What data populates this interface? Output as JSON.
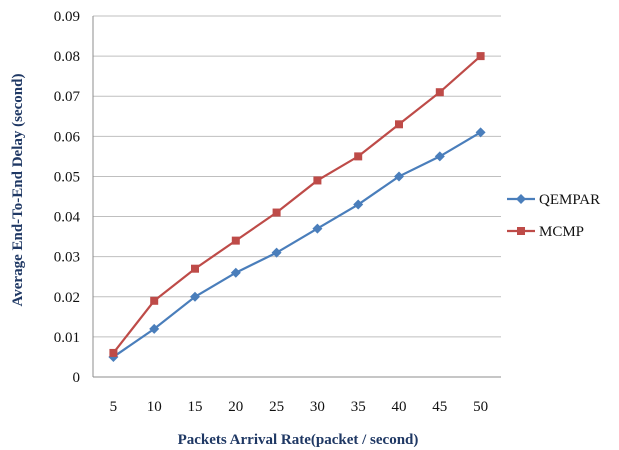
{
  "chart_data": {
    "type": "line",
    "categories": [
      "5",
      "10",
      "15",
      "20",
      "25",
      "30",
      "35",
      "40",
      "45",
      "50"
    ],
    "series": [
      {
        "name": "QEMPAR",
        "values": [
          0.005,
          0.012,
          0.02,
          0.026,
          0.031,
          0.037,
          0.043,
          0.05,
          0.055,
          0.061
        ],
        "color": "#4a7ebb",
        "marker": "diamond"
      },
      {
        "name": "MCMP",
        "values": [
          0.006,
          0.019,
          0.027,
          0.034,
          0.041,
          0.049,
          0.055,
          0.063,
          0.071,
          0.08
        ],
        "color": "#be4b48",
        "marker": "square"
      }
    ],
    "xlabel": "Packets Arrival Rate(packet / second)",
    "ylabel": "Average End-To-End  Delay (second)",
    "ylim": [
      0,
      0.09
    ],
    "yticks": [
      "0",
      "0.01",
      "0.02",
      "0.03",
      "0.04",
      "0.05",
      "0.06",
      "0.07",
      "0.08",
      "0.09"
    ],
    "grid": true,
    "legend": "right"
  }
}
